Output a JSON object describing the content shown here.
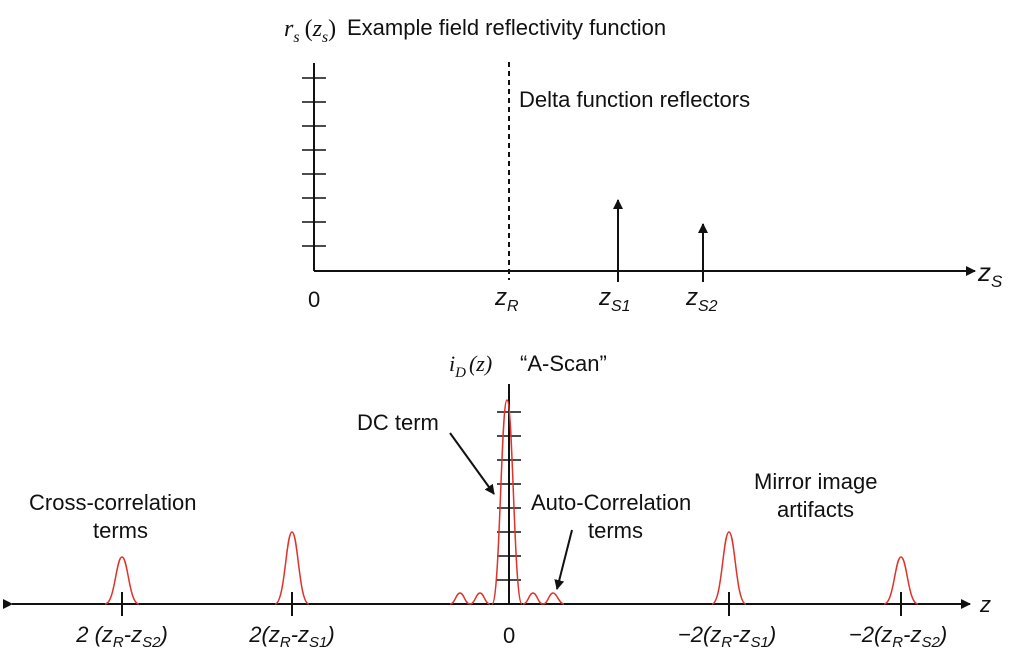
{
  "top_panel": {
    "ylabel_r": "r",
    "ylabel_rsub": "s",
    "ylabel_open": "(",
    "ylabel_z": "z",
    "ylabel_zsub": "s",
    "ylabel_close": ")",
    "title": "Example field reflectivity function",
    "annotation": "Delta function reflectors",
    "axis_label_z": "z",
    "axis_label_sub": "S",
    "tick_zero": "0",
    "tick_zr": "z",
    "tick_zr_sub": "R",
    "tick_zs1": "z",
    "tick_zs1_sub": "S1",
    "tick_zs2": "z",
    "tick_zs2_sub": "S2"
  },
  "bottom_panel": {
    "ylabel_i": "i",
    "ylabel_isub": "D",
    "ylabel_arg": "(z)",
    "title": "“A-Scan”",
    "axis_label": "z",
    "dc_label": "DC term",
    "auto_line1": "Auto-Correlation",
    "auto_line2": "terms",
    "cross_line1": "Cross-correlation",
    "cross_line2": "terms",
    "mirror_line1": "Mirror image",
    "mirror_line2": "artifacts",
    "tick_zero": "0",
    "tick1": {
      "pre": "2 (z",
      "s1": "R",
      "mid": "-z",
      "s2": "S2",
      "post": ")"
    },
    "tick2": {
      "pre": "2(z",
      "s1": "R",
      "mid": "-z",
      "s2": "S1",
      "post": ")"
    },
    "tick3": {
      "pre": "−2(z",
      "s1": "R",
      "mid": "-z",
      "s2": "S1",
      "post": ")"
    },
    "tick4": {
      "pre": "−2(z",
      "s1": "R",
      "mid": "-z",
      "s2": "S2",
      "post": ")"
    }
  },
  "colors": {
    "signal": "#e0312a",
    "ink": "#111111"
  }
}
